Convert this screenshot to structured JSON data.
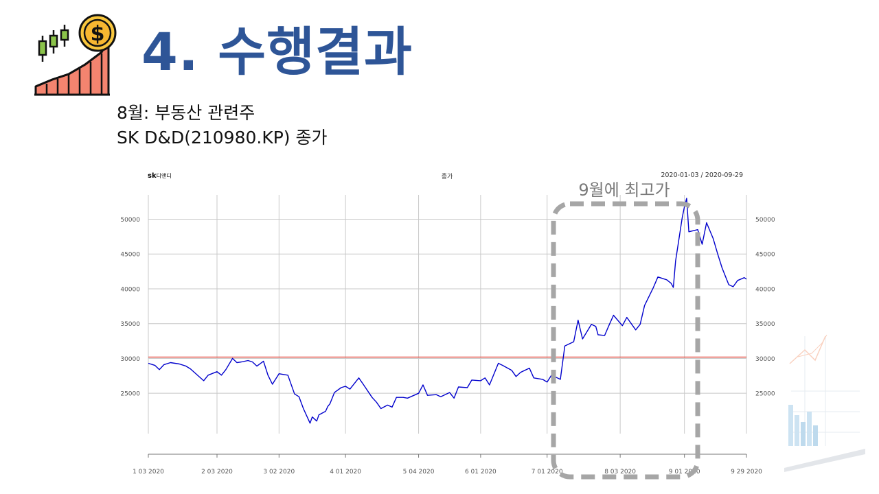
{
  "slide": {
    "title": "4. 수행결과",
    "subtitle_line1": "8월: 부동산 관련주",
    "subtitle_line2": "SK D&D(210980.KP) 종가",
    "title_color": "#2e5597",
    "logo_icon": "stock-growth-dollar-icon",
    "decor_icon": "chart-growth-decoration-icon"
  },
  "chart_header": {
    "left_brand": "sk",
    "left_name": "디앤디",
    "center": "종가",
    "right": "2020-01-03 / 2020-09-29"
  },
  "annotation": {
    "text": "9월에 최고가",
    "color": "#a6a6a6"
  },
  "chart_data": {
    "type": "line",
    "series": [
      {
        "color": "#0000cc",
        "x": [
          "2020-01-03",
          "2020-01-06",
          "2020-01-08",
          "2020-01-10",
          "2020-01-13",
          "2020-01-15",
          "2020-01-17",
          "2020-01-20",
          "2020-01-22",
          "2020-01-28",
          "2020-01-30",
          "2020-02-03",
          "2020-02-05",
          "2020-02-07",
          "2020-02-10",
          "2020-02-12",
          "2020-02-14",
          "2020-02-17",
          "2020-02-19",
          "2020-02-21",
          "2020-02-24",
          "2020-02-26",
          "2020-02-28",
          "2020-03-02",
          "2020-03-04",
          "2020-03-06",
          "2020-03-09",
          "2020-03-11",
          "2020-03-13",
          "2020-03-16",
          "2020-03-17",
          "2020-03-19",
          "2020-03-20",
          "2020-03-23",
          "2020-03-24",
          "2020-03-25",
          "2020-03-27",
          "2020-03-30",
          "2020-04-01",
          "2020-04-03",
          "2020-04-07",
          "2020-04-09",
          "2020-04-13",
          "2020-04-15",
          "2020-04-17",
          "2020-04-20",
          "2020-04-22",
          "2020-04-24",
          "2020-04-27",
          "2020-04-29",
          "2020-05-04",
          "2020-05-06",
          "2020-05-08",
          "2020-05-12",
          "2020-05-14",
          "2020-05-18",
          "2020-05-20",
          "2020-05-22",
          "2020-05-26",
          "2020-05-28",
          "2020-06-01",
          "2020-06-03",
          "2020-06-05",
          "2020-06-09",
          "2020-06-11",
          "2020-06-15",
          "2020-06-17",
          "2020-06-19",
          "2020-06-23",
          "2020-06-25",
          "2020-06-29",
          "2020-07-01",
          "2020-07-03",
          "2020-07-07",
          "2020-07-09",
          "2020-07-13",
          "2020-07-15",
          "2020-07-17",
          "2020-07-21",
          "2020-07-23",
          "2020-07-24",
          "2020-07-27",
          "2020-07-29",
          "2020-07-31",
          "2020-08-04",
          "2020-08-06",
          "2020-08-10",
          "2020-08-12",
          "2020-08-14",
          "2020-08-18",
          "2020-08-20",
          "2020-08-24",
          "2020-08-26",
          "2020-08-27",
          "2020-08-28",
          "2020-08-31",
          "2020-09-01",
          "2020-09-02",
          "2020-09-03",
          "2020-09-07",
          "2020-09-09",
          "2020-09-11",
          "2020-09-14",
          "2020-09-16",
          "2020-09-18",
          "2020-09-21",
          "2020-09-23",
          "2020-09-25",
          "2020-09-28",
          "2020-09-29"
        ],
        "y": [
          29300,
          29000,
          28400,
          29100,
          29400,
          29300,
          29200,
          28900,
          28500,
          26800,
          27600,
          28100,
          27600,
          28400,
          30000,
          29400,
          29500,
          29700,
          29500,
          28900,
          29600,
          27600,
          26300,
          27800,
          27700,
          27600,
          24900,
          24500,
          22800,
          20700,
          21600,
          21000,
          21900,
          22400,
          23100,
          23500,
          25100,
          25800,
          26000,
          25600,
          27200,
          26300,
          24400,
          23700,
          22800,
          23300,
          23000,
          24400,
          24400,
          24300,
          25000,
          26200,
          24700,
          24800,
          24500,
          25100,
          24300,
          25900,
          25800,
          26900,
          26800,
          27200,
          26200,
          29300,
          29000,
          28300,
          27400,
          28000,
          28600,
          27200,
          27000,
          26600,
          27600,
          27000,
          31800,
          32400,
          35500,
          32800,
          34900,
          34600,
          33400,
          33300,
          34800,
          36200,
          34700,
          35900,
          34100,
          34900,
          37600,
          40200,
          41700,
          41300,
          40800,
          40200,
          44000,
          50200,
          51800,
          53000,
          48200,
          48500,
          46400,
          49500,
          47200,
          45000,
          43000,
          40600,
          40300,
          41200,
          41600,
          41400
        ],
        "line_width": 1.4
      }
    ],
    "reference_line": {
      "y": 30200,
      "color": "#e8554a"
    },
    "x_ticks": [
      "1 03 2020",
      "2 03 2020",
      "3 02 2020",
      "4 01 2020",
      "5 04 2020",
      "6 01 2020",
      "7 01 2020",
      "8 03 2020",
      "9 01 2020",
      "9 29 2020"
    ],
    "x_tick_dates": [
      "2020-01-03",
      "2020-02-03",
      "2020-03-02",
      "2020-04-01",
      "2020-05-04",
      "2020-06-01",
      "2020-07-01",
      "2020-08-03",
      "2020-09-01",
      "2020-09-29"
    ],
    "y_ticks": [
      25000,
      30000,
      35000,
      40000,
      45000,
      50000
    ],
    "y_tick_labels": [
      "25000",
      "30000",
      "35000",
      "40000",
      "45000",
      "50000"
    ],
    "xlim": [
      "2020-01-03",
      "2020-09-29"
    ],
    "ylim": [
      19200,
      53500
    ],
    "grid": true,
    "y_axis": "both"
  }
}
